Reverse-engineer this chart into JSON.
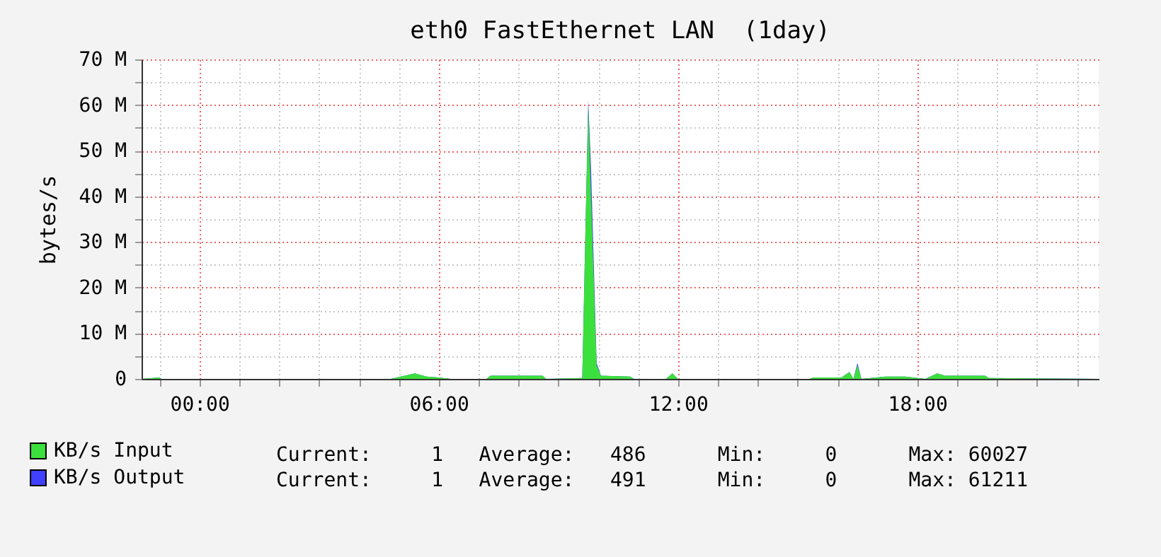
{
  "chart_data": {
    "type": "area",
    "title": "eth0 FastEthernet LAN  (1day)",
    "ylabel": "bytes/s",
    "x": [
      -1.45,
      -1.0,
      -0.95,
      4.8,
      5.4,
      5.7,
      6.0,
      6.3,
      7.2,
      7.3,
      8.6,
      8.7,
      9.6,
      9.75,
      9.82,
      9.96,
      10.07,
      10.8,
      10.9,
      11.7,
      11.86,
      12.0,
      15.3,
      15.4,
      16.1,
      16.3,
      16.4,
      16.5,
      16.6,
      17.2,
      17.7,
      18.2,
      18.5,
      18.7,
      19.7,
      19.8,
      22.55
    ],
    "series": [
      {
        "name": "KB/s Input",
        "color": "#3ce03c",
        "values": [
          0,
          0.3,
          0,
          0,
          1.2,
          0.5,
          0.3,
          0,
          0,
          0.7,
          0.7,
          0,
          0.2,
          60,
          40,
          3,
          0.7,
          0.5,
          0,
          0,
          1.2,
          0,
          0,
          0.3,
          0.3,
          1.5,
          0,
          3,
          0,
          0.5,
          0.5,
          0,
          1.2,
          0.7,
          0.7,
          0.2,
          0
        ]
      },
      {
        "name": "KB/s Output",
        "color": "#4040ff",
        "values": [
          0,
          0.3,
          0,
          0,
          1.2,
          0.5,
          0.3,
          0,
          0,
          0.7,
          0.7,
          0,
          0.2,
          61,
          46,
          3.5,
          0.7,
          0.5,
          0,
          0,
          1.2,
          0,
          0,
          0.3,
          0.3,
          1.5,
          0,
          3.5,
          0,
          0.5,
          0.5,
          0,
          1.2,
          0.7,
          0.7,
          0.2,
          0
        ]
      }
    ],
    "xlim": [
      -1.45,
      22.55
    ],
    "xticks": [
      {
        "value": -1,
        "label": null
      },
      {
        "value": 0,
        "label": "00:00"
      },
      {
        "value": 1,
        "label": null
      },
      {
        "value": 2,
        "label": null
      },
      {
        "value": 3,
        "label": null
      },
      {
        "value": 4,
        "label": null
      },
      {
        "value": 5,
        "label": null
      },
      {
        "value": 6,
        "label": "06:00"
      },
      {
        "value": 7,
        "label": null
      },
      {
        "value": 8,
        "label": null
      },
      {
        "value": 9,
        "label": null
      },
      {
        "value": 10,
        "label": null
      },
      {
        "value": 11,
        "label": null
      },
      {
        "value": 12,
        "label": "12:00"
      },
      {
        "value": 13,
        "label": null
      },
      {
        "value": 14,
        "label": null
      },
      {
        "value": 15,
        "label": null
      },
      {
        "value": 16,
        "label": null
      },
      {
        "value": 17,
        "label": null
      },
      {
        "value": 18,
        "label": "18:00"
      },
      {
        "value": 19,
        "label": null
      },
      {
        "value": 20,
        "label": null
      },
      {
        "value": 21,
        "label": null
      },
      {
        "value": 22,
        "label": null
      }
    ],
    "ylim": [
      0,
      70
    ],
    "yticks": [
      0,
      {
        "value": 5,
        "label": null
      },
      {
        "value": 10,
        "label": "10 M"
      },
      {
        "value": 15,
        "label": null
      },
      {
        "value": 20,
        "label": "20 M"
      },
      {
        "value": 25,
        "label": null
      },
      {
        "value": 30,
        "label": "30 M"
      },
      {
        "value": 35,
        "label": null
      },
      {
        "value": 40,
        "label": "40 M"
      },
      {
        "value": 45,
        "label": null
      },
      {
        "value": 50,
        "label": "50 M"
      },
      {
        "value": 55,
        "label": null
      },
      {
        "value": 60,
        "label": "60 M"
      },
      {
        "value": 65,
        "label": null
      },
      {
        "value": 70,
        "label": "70 M"
      }
    ],
    "grid": true,
    "legend": "bottom",
    "annotations": [
      "Current:     1   Average:   486      Min:     0      Max: 60027",
      "Current:     1   Average:   491      Min:     0      Max: 61211"
    ]
  }
}
